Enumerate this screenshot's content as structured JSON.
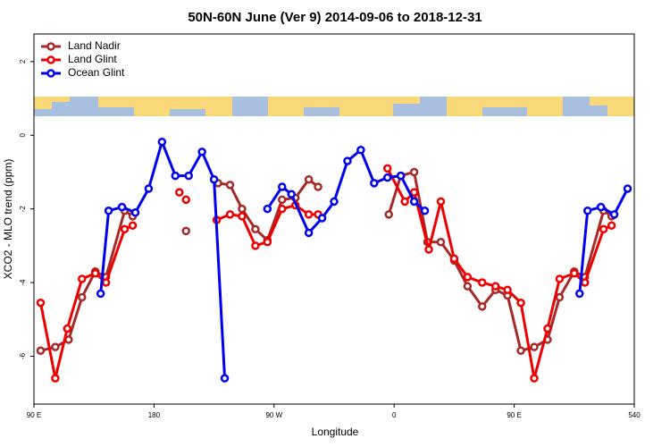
{
  "chart_data": {
    "type": "line",
    "title": "50N-60N June (Ver 9)   2014-09-06 to 2018-12-31",
    "x_label": "Longitude",
    "y_label": "XCO2 - MLO trend (ppm)",
    "xlim": [
      90,
      540
    ],
    "xticks": [
      {
        "value": 90,
        "label": "90 E"
      },
      180,
      {
        "value": 270,
        "label": "90 W"
      },
      {
        "value": 360,
        "label": "0"
      },
      {
        "value": 450,
        "label": "90 E"
      },
      540
    ],
    "ylim": [
      -7.3,
      2.75
    ],
    "yticks": [
      2,
      0,
      -2,
      -4,
      -6
    ],
    "legend": "top-left",
    "series": [
      {
        "name": "Land Nadir",
        "color": "#a52a2a",
        "x": [
          95,
          106,
          116,
          126,
          136,
          144,
          158,
          164,
          null,
          204,
          null,
          228,
          237,
          246,
          256,
          265,
          276,
          286,
          296,
          303,
          null,
          356,
          365,
          375,
          385,
          395,
          405,
          415,
          426,
          436,
          445,
          455,
          465,
          475,
          484,
          495,
          503,
          517,
          523
        ],
        "values": [
          -5.85,
          -5.75,
          -5.55,
          -4.4,
          -3.7,
          -3.85,
          -2.05,
          -2.2,
          null,
          -2.6,
          null,
          -1.3,
          -1.35,
          -2.0,
          -2.55,
          -2.85,
          -1.75,
          -1.7,
          -1.2,
          -1.4,
          null,
          -2.15,
          -1.1,
          -1.0,
          -2.9,
          -2.9,
          -3.4,
          -4.1,
          -4.65,
          -4.2,
          -4.35,
          -5.85,
          -5.75,
          -5.55,
          -4.4,
          -3.7,
          -3.85,
          -2.05,
          -2.2
        ]
      },
      {
        "name": "Land Glint",
        "color": "#ee0000",
        "x": [
          95,
          106,
          115,
          126,
          136,
          144,
          158,
          164,
          null,
          199,
          null,
          204,
          null,
          227,
          237,
          246,
          256,
          265,
          276,
          286,
          296,
          303,
          null,
          355,
          368,
          375,
          386,
          395,
          405,
          415,
          426,
          436,
          445,
          455,
          465,
          475,
          484,
          495,
          503,
          517,
          523
        ],
        "values": [
          -4.55,
          -6.6,
          -5.25,
          -3.9,
          -3.75,
          -4.0,
          -2.55,
          -2.45,
          null,
          -1.55,
          null,
          -1.75,
          null,
          -2.3,
          -2.15,
          -2.2,
          -3.0,
          -2.9,
          -2.0,
          -1.9,
          -2.15,
          -2.15,
          null,
          -0.9,
          -1.8,
          -1.55,
          -3.1,
          -1.8,
          -3.35,
          -3.85,
          -4.0,
          -4.1,
          -4.2,
          -4.55,
          -6.6,
          -5.25,
          -3.9,
          -3.75,
          -4.0,
          -2.55,
          -2.45
        ]
      },
      {
        "name": "Ocean Glint",
        "color": "#0000ee",
        "x": [
          140,
          146,
          156,
          166,
          176,
          186,
          196,
          206,
          216,
          225,
          233,
          null,
          265,
          276,
          283,
          296,
          306,
          315,
          325,
          335,
          345,
          355,
          365,
          375,
          383,
          null,
          499,
          505,
          515,
          525,
          535
        ],
        "values": [
          -4.3,
          -2.05,
          -1.95,
          -2.1,
          -1.45,
          -0.18,
          -1.1,
          -1.1,
          -0.45,
          -1.2,
          -6.6,
          null,
          -2.0,
          -1.4,
          -1.6,
          -2.65,
          -2.25,
          -1.8,
          -0.7,
          -0.4,
          -1.3,
          -1.15,
          -1.1,
          -1.8,
          -2.05,
          null,
          -4.3,
          -2.05,
          -1.95,
          -2.15,
          -1.45
        ]
      }
    ]
  }
}
